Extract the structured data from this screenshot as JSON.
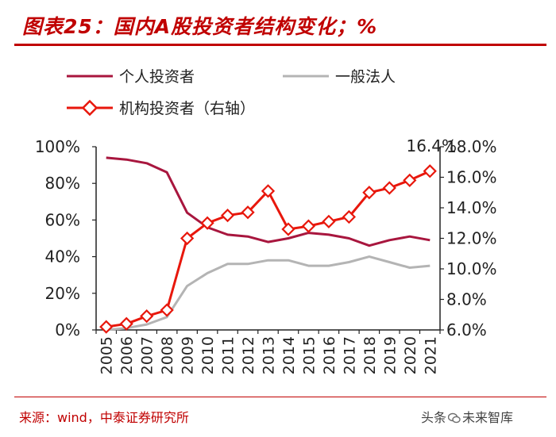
{
  "page": {
    "title": "图表25：国内A股投资者结构变化；%",
    "source": "来源：wind，中泰证券研究所",
    "watermark": {
      "prefix": "头条",
      "name": "未来智库"
    }
  },
  "colors": {
    "brand_red": "#c00000",
    "individual": "#a8163e",
    "legal_person": "#b4b4b4",
    "institutional": "#e8170c"
  },
  "chart_data": {
    "type": "line",
    "x": [
      "2005",
      "2006",
      "2007",
      "2008",
      "2009",
      "2010",
      "2011",
      "2012",
      "2013",
      "2014",
      "2015",
      "2016",
      "2017",
      "2018",
      "2019",
      "2020",
      "2021"
    ],
    "series": [
      {
        "name": "个人投资者",
        "axis": "left",
        "marker": false,
        "values": [
          94,
          93,
          91,
          86,
          64,
          56,
          52,
          51,
          48,
          50,
          53,
          52,
          50,
          46,
          49,
          51,
          49
        ]
      },
      {
        "name": "一般法人",
        "axis": "left",
        "marker": false,
        "values": [
          0,
          1,
          3,
          7,
          24,
          31,
          36,
          36,
          38,
          38,
          35,
          35,
          37,
          40,
          37,
          34,
          35
        ]
      },
      {
        "name": "机构投资者（右轴）",
        "axis": "right",
        "marker": true,
        "values": [
          6.2,
          6.4,
          6.9,
          7.3,
          12.0,
          13.0,
          13.5,
          13.7,
          15.1,
          12.6,
          12.8,
          13.1,
          13.4,
          15.0,
          15.3,
          15.8,
          16.4
        ]
      }
    ],
    "y_left": {
      "range": [
        0,
        100
      ],
      "ticks": [
        "0%",
        "20%",
        "40%",
        "60%",
        "80%",
        "100%"
      ]
    },
    "y_right": {
      "range": [
        6,
        18
      ],
      "ticks": [
        "6.0%",
        "8.0%",
        "10.0%",
        "12.0%",
        "14.0%",
        "16.0%",
        "18.0%"
      ]
    },
    "annotation": {
      "text": "16.4%",
      "series": 2,
      "index": 16
    },
    "legend_position": "top-left",
    "grid": false
  }
}
